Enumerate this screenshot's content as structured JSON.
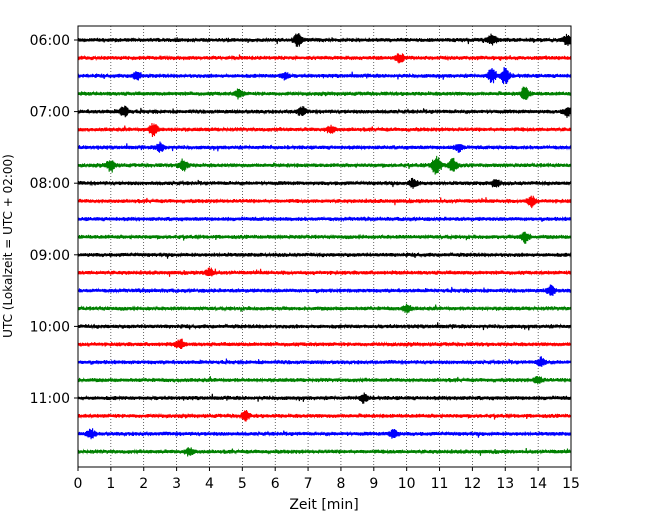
{
  "chart_data": {
    "type": "line",
    "chart_kind": "helicorder (seismogram drum plot)",
    "xlabel": "Zeit  [min]",
    "ylabel": "UTC (Lokalzeit = UTC + 02:00)",
    "xlim": [
      0,
      15
    ],
    "x_ticks": [
      "0",
      "1",
      "2",
      "3",
      "4",
      "5",
      "6",
      "7",
      "8",
      "9",
      "10",
      "11",
      "12",
      "13",
      "14",
      "15"
    ],
    "y_tick_labels": [
      "06:00",
      "07:00",
      "08:00",
      "09:00",
      "10:00",
      "11:00"
    ],
    "grid": "vertical dotted lines at each minute",
    "line_minutes": 15,
    "trace_color_cycle": [
      "#000000",
      "#ff0000",
      "#0000ff",
      "#008000"
    ],
    "traces_start": "06:00",
    "trace_count": 24,
    "events": [
      {
        "trace": 0,
        "minute": 6.7,
        "amp": 1.0
      },
      {
        "trace": 0,
        "minute": 12.6,
        "amp": 0.7
      },
      {
        "trace": 0,
        "minute": 14.9,
        "amp": 0.8
      },
      {
        "trace": 1,
        "minute": 9.8,
        "amp": 0.6
      },
      {
        "trace": 2,
        "minute": 1.8,
        "amp": 0.6
      },
      {
        "trace": 2,
        "minute": 6.3,
        "amp": 0.5
      },
      {
        "trace": 2,
        "minute": 12.6,
        "amp": 1.0
      },
      {
        "trace": 2,
        "minute": 13.0,
        "amp": 1.2
      },
      {
        "trace": 3,
        "minute": 4.9,
        "amp": 0.6
      },
      {
        "trace": 3,
        "minute": 13.6,
        "amp": 0.9
      },
      {
        "trace": 4,
        "minute": 1.4,
        "amp": 0.8
      },
      {
        "trace": 4,
        "minute": 6.8,
        "amp": 0.6
      },
      {
        "trace": 4,
        "minute": 14.9,
        "amp": 0.7
      },
      {
        "trace": 5,
        "minute": 2.3,
        "amp": 0.9
      },
      {
        "trace": 5,
        "minute": 7.7,
        "amp": 0.5
      },
      {
        "trace": 6,
        "minute": 2.5,
        "amp": 0.6
      },
      {
        "trace": 6,
        "minute": 11.6,
        "amp": 0.5
      },
      {
        "trace": 7,
        "minute": 1.0,
        "amp": 0.8
      },
      {
        "trace": 7,
        "minute": 3.2,
        "amp": 0.8
      },
      {
        "trace": 7,
        "minute": 10.9,
        "amp": 1.4
      },
      {
        "trace": 7,
        "minute": 11.4,
        "amp": 1.0
      },
      {
        "trace": 8,
        "minute": 10.2,
        "amp": 0.6
      },
      {
        "trace": 8,
        "minute": 12.7,
        "amp": 0.6
      },
      {
        "trace": 9,
        "minute": 13.8,
        "amp": 0.7
      },
      {
        "trace": 11,
        "minute": 13.6,
        "amp": 0.8
      },
      {
        "trace": 13,
        "minute": 4.0,
        "amp": 0.6
      },
      {
        "trace": 14,
        "minute": 14.4,
        "amp": 0.7
      },
      {
        "trace": 15,
        "minute": 10.0,
        "amp": 0.6
      },
      {
        "trace": 17,
        "minute": 3.1,
        "amp": 0.7
      },
      {
        "trace": 18,
        "minute": 14.1,
        "amp": 0.6
      },
      {
        "trace": 19,
        "minute": 14.0,
        "amp": 0.6
      },
      {
        "trace": 20,
        "minute": 8.7,
        "amp": 0.6
      },
      {
        "trace": 21,
        "minute": 5.1,
        "amp": 0.6
      },
      {
        "trace": 22,
        "minute": 0.4,
        "amp": 0.6
      },
      {
        "trace": 22,
        "minute": 9.6,
        "amp": 0.6
      },
      {
        "trace": 23,
        "minute": 3.4,
        "amp": 0.5
      }
    ]
  }
}
